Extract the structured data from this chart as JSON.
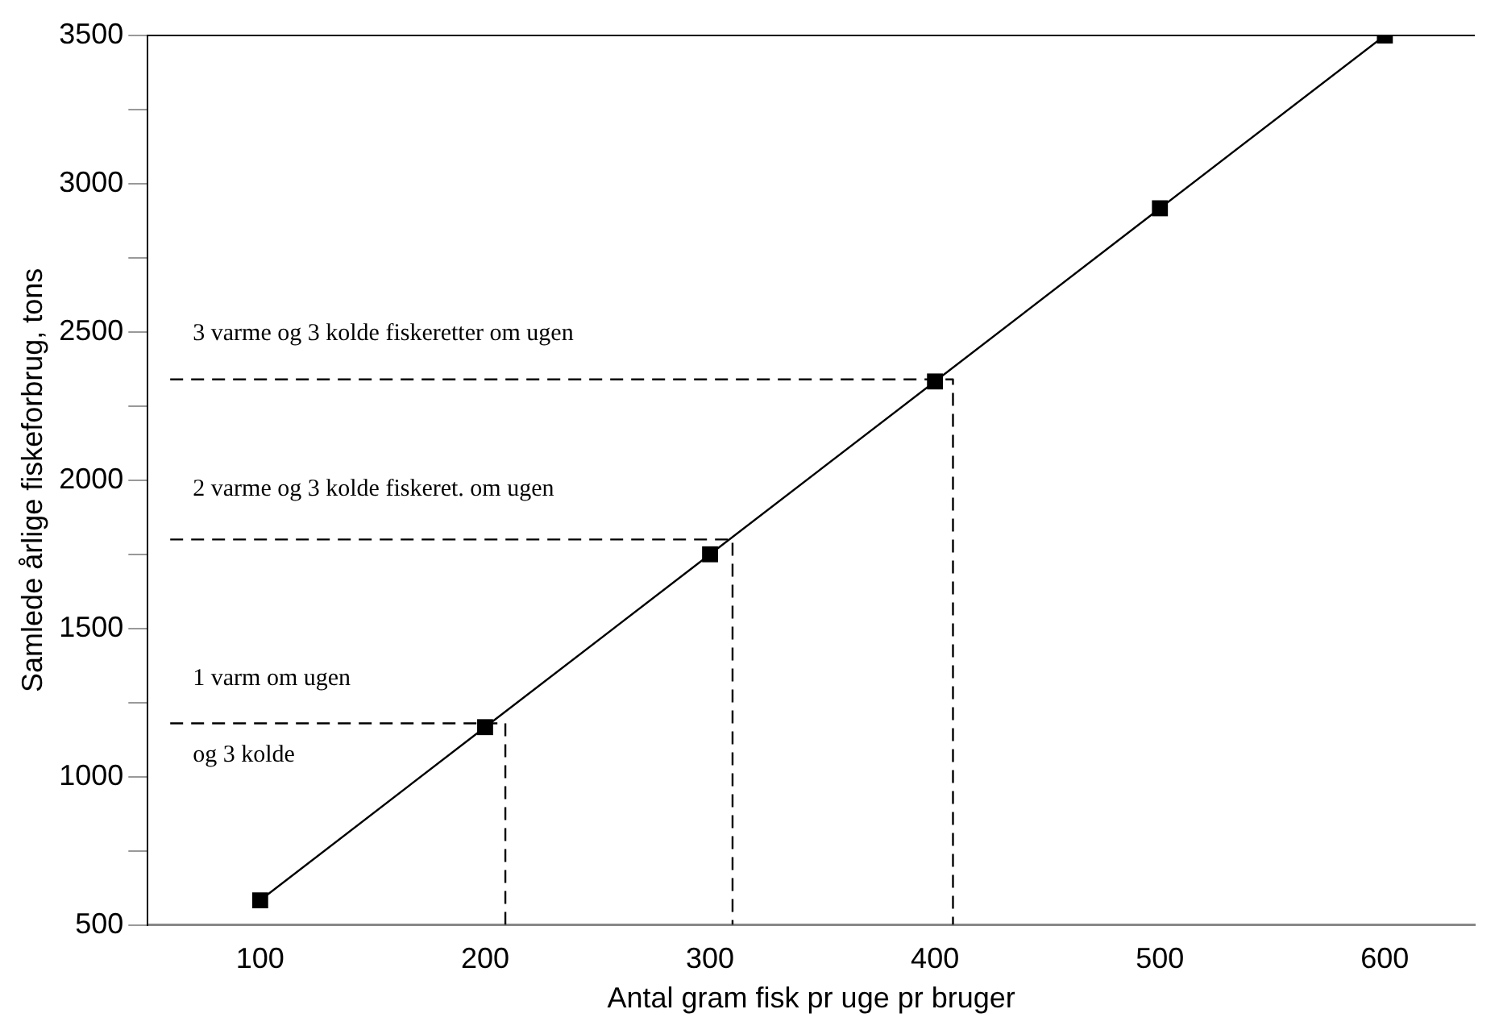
{
  "chart_data": {
    "type": "line",
    "xlabel": "Antal gram fisk pr uge pr bruger",
    "ylabel": "Samlede årlige fiskeforbrug, tons",
    "xlim": [
      50,
      640
    ],
    "xticks": [
      100,
      200,
      300,
      400,
      500,
      600
    ],
    "ylim": [
      500,
      3500
    ],
    "yticks": [
      500,
      {
        "value": 750,
        "label": null
      },
      1000,
      {
        "value": 1250,
        "label": null
      },
      1500,
      {
        "value": 1750,
        "label": null
      },
      2000,
      {
        "value": 2250,
        "label": null
      },
      2500,
      {
        "value": 2750,
        "label": null
      },
      3000,
      {
        "value": 3250,
        "label": null
      },
      3500
    ],
    "grid": false,
    "legend": false,
    "series": [
      {
        "color": "#000000",
        "x": [
          100,
          200,
          300,
          400,
          500,
          600
        ],
        "values": [
          583,
          1167,
          1750,
          2333,
          2917,
          3500
        ],
        "marker": "square",
        "line_style": "solid"
      },
      {
        "color": "#000000",
        "x": [
          60,
          209,
          209
        ],
        "values": [
          1180,
          1180,
          500
        ],
        "marker": "none",
        "line_style": "dashed"
      },
      {
        "color": "#000000",
        "x": [
          60,
          310,
          310
        ],
        "values": [
          1800,
          1800,
          500
        ],
        "marker": "none",
        "line_style": "dashed"
      },
      {
        "color": "#000000",
        "x": [
          60,
          408,
          408
        ],
        "values": [
          2340,
          2340,
          500
        ],
        "marker": "none",
        "line_style": "dashed"
      }
    ],
    "annotations": [
      "3 varme og 3 kolde fiskeretter om ugen",
      "2 varme og 3 kolde fiskeret. om ugen",
      "1 varm om ugen",
      "og 3 kolde"
    ]
  }
}
